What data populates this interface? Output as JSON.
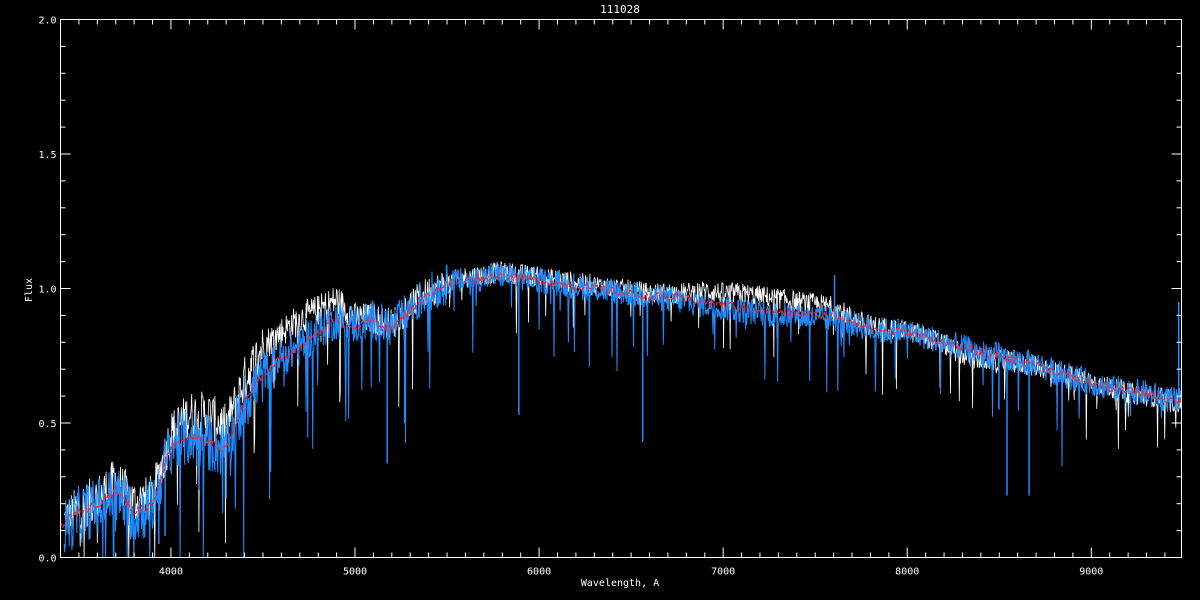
{
  "chart_data": {
    "type": "line",
    "title": "111028",
    "xlabel": "Wavelength, A",
    "ylabel": "Flux",
    "xlim": [
      3400,
      9490
    ],
    "ylim": [
      0.0,
      2.0
    ],
    "x_ticks": [
      4000,
      5000,
      6000,
      7000,
      8000,
      9000
    ],
    "x_tick_labels": [
      "4000",
      "5000",
      "6000",
      "7000",
      "8000",
      "9000"
    ],
    "y_ticks": [
      0.0,
      0.5,
      1.0,
      1.5,
      2.0
    ],
    "y_tick_labels": [
      "0.0",
      "0.5",
      "1.0",
      "1.5",
      "2.0"
    ],
    "grid": false,
    "colors": {
      "background": "#000000",
      "axes": "#ffffff",
      "observed": "#1e8cff",
      "model": "#ffffff",
      "smoothed": "#ff2020"
    },
    "x": [
      3400,
      3500,
      3600,
      3700,
      3800,
      3900,
      4000,
      4100,
      4200,
      4300,
      4400,
      4500,
      4600,
      4700,
      4800,
      4900,
      5000,
      5100,
      5200,
      5300,
      5400,
      5500,
      5600,
      5700,
      5800,
      5900,
      6000,
      6100,
      6200,
      6300,
      6400,
      6500,
      6600,
      6700,
      6800,
      6900,
      7000,
      7100,
      7200,
      7300,
      7400,
      7500,
      7600,
      7700,
      7800,
      7900,
      8000,
      8100,
      8200,
      8300,
      8400,
      8500,
      8600,
      8700,
      8800,
      8900,
      9000,
      9100,
      9200,
      9300,
      9400,
      9490
    ],
    "series": [
      {
        "key": "model",
        "color": "#ffffff",
        "values": [
          0.14,
          0.2,
          0.24,
          0.3,
          0.22,
          0.24,
          0.48,
          0.55,
          0.55,
          0.5,
          0.68,
          0.8,
          0.85,
          0.9,
          0.93,
          0.97,
          0.9,
          0.9,
          0.88,
          0.95,
          1.0,
          1.03,
          1.05,
          1.06,
          1.07,
          1.06,
          1.05,
          1.04,
          1.03,
          1.02,
          1.01,
          1.0,
          0.99,
          0.99,
          0.99,
          1.0,
          0.99,
          0.99,
          0.98,
          0.97,
          0.96,
          0.95,
          0.94,
          0.9,
          0.87,
          0.86,
          0.85,
          0.83,
          0.8,
          0.76,
          0.74,
          0.74,
          0.73,
          0.72,
          0.7,
          0.68,
          0.66,
          0.64,
          0.62,
          0.61,
          0.6,
          0.58
        ]
      },
      {
        "key": "observed",
        "color": "#1e8cff",
        "values": [
          0.12,
          0.18,
          0.21,
          0.26,
          0.18,
          0.21,
          0.44,
          0.47,
          0.45,
          0.42,
          0.6,
          0.7,
          0.76,
          0.8,
          0.86,
          0.9,
          0.88,
          0.9,
          0.87,
          0.94,
          1.0,
          1.03,
          1.04,
          1.05,
          1.06,
          1.05,
          1.04,
          1.03,
          1.02,
          1.01,
          1.0,
          0.99,
          0.98,
          0.97,
          0.96,
          0.95,
          0.94,
          0.93,
          0.92,
          0.91,
          0.91,
          0.9,
          0.9,
          0.88,
          0.86,
          0.85,
          0.85,
          0.83,
          0.81,
          0.79,
          0.77,
          0.76,
          0.74,
          0.73,
          0.7,
          0.68,
          0.66,
          0.64,
          0.63,
          0.62,
          0.6,
          0.59
        ]
      },
      {
        "key": "smoothed",
        "color": "#ff2020",
        "style": "dashed",
        "values": [
          0.12,
          0.17,
          0.2,
          0.25,
          0.17,
          0.2,
          0.42,
          0.45,
          0.43,
          0.4,
          0.58,
          0.68,
          0.74,
          0.78,
          0.84,
          0.88,
          0.86,
          0.88,
          0.85,
          0.92,
          0.98,
          1.02,
          1.03,
          1.04,
          1.05,
          1.04,
          1.03,
          1.02,
          1.01,
          1.0,
          0.99,
          0.98,
          0.97,
          0.97,
          0.96,
          0.95,
          0.94,
          0.93,
          0.92,
          0.91,
          0.91,
          0.9,
          0.9,
          0.88,
          0.85,
          0.84,
          0.84,
          0.82,
          0.8,
          0.78,
          0.76,
          0.75,
          0.73,
          0.72,
          0.69,
          0.67,
          0.65,
          0.63,
          0.62,
          0.61,
          0.59,
          0.58
        ]
      }
    ],
    "features": [
      {
        "wavelength": 3934,
        "flux": 0.05
      },
      {
        "wavelength": 3968,
        "flux": 0.08
      },
      {
        "wavelength": 4300,
        "flux": 0.22
      },
      {
        "wavelength": 5175,
        "flux": 0.35
      },
      {
        "wavelength": 5270,
        "flux": 0.5
      },
      {
        "wavelength": 5890,
        "flux": 0.53
      },
      {
        "wavelength": 6563,
        "flux": 0.43
      },
      {
        "wavelength": 7605,
        "flux": 1.05
      },
      {
        "wavelength": 8498,
        "flux": 0.55
      },
      {
        "wavelength": 8542,
        "flux": 0.23
      },
      {
        "wavelength": 8662,
        "flux": 0.23
      },
      {
        "wavelength": 9475,
        "flux": 0.95
      }
    ]
  }
}
